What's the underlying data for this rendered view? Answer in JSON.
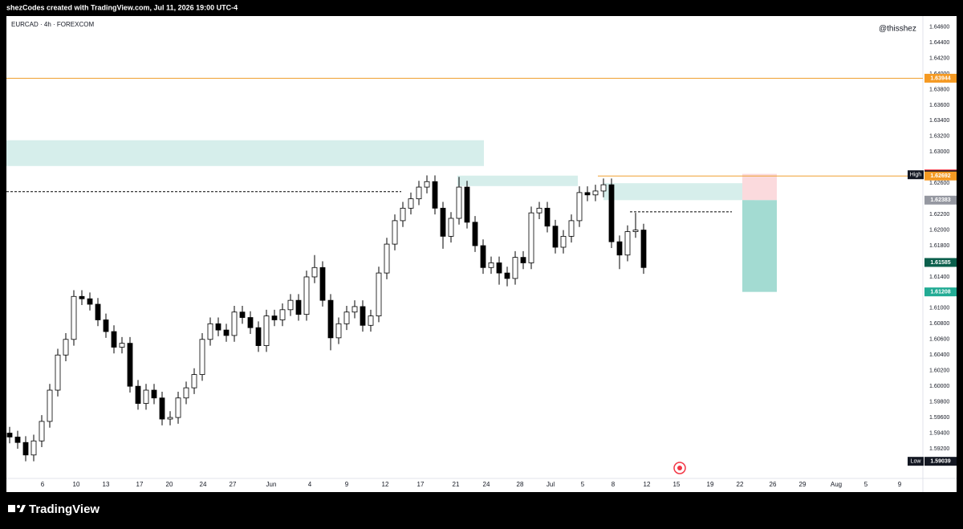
{
  "header": "shezCodes created with TradingView.com, Jul 11, 2026 19:00 UTC-4",
  "symbol": "EURCAD · 4h · FOREXCOM",
  "watermark": "@thisshez",
  "footer": "TradingView",
  "chart_data": {
    "type": "candlestick",
    "up_color": "#ffffff",
    "down_color": "#000000",
    "wick_color": "#000000",
    "x": [
      0,
      1,
      2,
      3,
      4,
      5,
      6,
      7,
      8,
      9,
      10,
      11,
      12,
      13,
      14,
      15,
      16,
      17,
      18,
      19,
      20,
      21,
      22,
      23,
      24,
      25,
      26,
      27,
      28,
      29,
      30,
      31,
      32,
      33,
      34,
      35,
      36,
      37,
      38,
      39,
      40,
      41,
      42,
      43,
      44,
      45,
      46,
      47,
      48,
      49,
      50,
      51,
      52,
      53,
      54,
      55,
      56,
      57,
      58,
      59,
      60,
      61,
      62,
      63,
      64,
      65,
      66,
      67,
      68,
      69,
      70,
      71,
      72,
      73,
      74,
      75,
      76,
      77,
      78,
      79
    ],
    "open": [
      1.594,
      1.5935,
      1.5928,
      1.5912,
      1.593,
      1.5955,
      1.5995,
      1.604,
      1.606,
      1.6115,
      1.6112,
      1.6105,
      1.6085,
      1.607,
      1.605,
      1.6055,
      1.6,
      1.5978,
      1.5995,
      1.5985,
      1.5958,
      1.596,
      1.5985,
      1.5998,
      1.6015,
      1.606,
      1.608,
      1.6072,
      1.6065,
      1.6095,
      1.6088,
      1.6075,
      1.6052,
      1.609,
      1.6085,
      1.6098,
      1.611,
      1.6092,
      1.614,
      1.6152,
      1.611,
      1.6062,
      1.608,
      1.6095,
      1.6102,
      1.6078,
      1.609,
      1.6145,
      1.6182,
      1.6212,
      1.6228,
      1.624,
      1.6255,
      1.6262,
      1.6228,
      1.6192,
      1.6215,
      1.6255,
      1.621,
      1.618,
      1.6152,
      1.6158,
      1.6145,
      1.6138,
      1.6165,
      1.6158,
      1.6222,
      1.6228,
      1.6205,
      1.6178,
      1.6192,
      1.6212,
      1.6248,
      1.6245,
      1.625,
      1.6258,
      1.6185,
      1.6168,
      1.6198,
      1.62
    ],
    "high": [
      1.5948,
      1.5943,
      1.5936,
      1.5938,
      1.5963,
      1.6003,
      1.6048,
      1.6068,
      1.6123,
      1.6123,
      1.612,
      1.6113,
      1.6093,
      1.6078,
      1.6063,
      1.6063,
      1.6008,
      1.6003,
      1.6003,
      1.5993,
      1.5968,
      1.5993,
      1.6006,
      1.6023,
      1.6068,
      1.6088,
      1.6088,
      1.608,
      1.6103,
      1.6103,
      1.6096,
      1.6083,
      1.6098,
      1.6098,
      1.6106,
      1.6118,
      1.6118,
      1.6148,
      1.6168,
      1.616,
      1.6118,
      1.6088,
      1.6103,
      1.611,
      1.611,
      1.6098,
      1.6153,
      1.619,
      1.622,
      1.6236,
      1.6248,
      1.6263,
      1.627,
      1.627,
      1.6236,
      1.6223,
      1.6268,
      1.6263,
      1.6218,
      1.6188,
      1.6166,
      1.6166,
      1.6153,
      1.6173,
      1.6173,
      1.623,
      1.6236,
      1.6236,
      1.6213,
      1.62,
      1.622,
      1.6256,
      1.6256,
      1.6258,
      1.6266,
      1.6266,
      1.6193,
      1.6206,
      1.6222,
      1.6208
    ],
    "low": [
      1.5927,
      1.592,
      1.59039,
      1.5904,
      1.5922,
      1.5947,
      1.5987,
      1.6032,
      1.6052,
      1.6104,
      1.6097,
      1.6077,
      1.6062,
      1.6042,
      1.6042,
      1.5992,
      1.597,
      1.597,
      1.5977,
      1.595,
      1.595,
      1.5952,
      1.5977,
      1.599,
      1.6007,
      1.6052,
      1.6064,
      1.6057,
      1.6057,
      1.608,
      1.6067,
      1.6044,
      1.6044,
      1.6077,
      1.6077,
      1.609,
      1.6084,
      1.6084,
      1.6132,
      1.6102,
      1.6046,
      1.6054,
      1.6072,
      1.6087,
      1.607,
      1.607,
      1.6082,
      1.6137,
      1.6174,
      1.6204,
      1.622,
      1.6232,
      1.6247,
      1.622,
      1.6176,
      1.6184,
      1.6207,
      1.6202,
      1.6172,
      1.6144,
      1.6144,
      1.613,
      1.6128,
      1.613,
      1.615,
      1.615,
      1.6214,
      1.6197,
      1.617,
      1.617,
      1.6184,
      1.6204,
      1.6237,
      1.6237,
      1.6242,
      1.6177,
      1.615,
      1.616,
      1.619,
      1.6144
    ],
    "close": [
      1.5935,
      1.5928,
      1.5912,
      1.593,
      1.5955,
      1.5995,
      1.604,
      1.606,
      1.6115,
      1.6112,
      1.6105,
      1.6085,
      1.607,
      1.605,
      1.6055,
      1.6,
      1.5978,
      1.5995,
      1.5985,
      1.5958,
      1.596,
      1.5985,
      1.5998,
      1.6015,
      1.606,
      1.608,
      1.6072,
      1.6065,
      1.6095,
      1.6088,
      1.6075,
      1.6052,
      1.609,
      1.6085,
      1.6098,
      1.611,
      1.6092,
      1.614,
      1.6152,
      1.611,
      1.6062,
      1.608,
      1.6095,
      1.6102,
      1.6078,
      1.609,
      1.6145,
      1.6182,
      1.6212,
      1.6228,
      1.624,
      1.6255,
      1.6262,
      1.6228,
      1.6192,
      1.6215,
      1.6255,
      1.621,
      1.618,
      1.6152,
      1.6158,
      1.6145,
      1.6138,
      1.6165,
      1.6158,
      1.6222,
      1.6228,
      1.6205,
      1.6178,
      1.6192,
      1.6212,
      1.6248,
      1.6245,
      1.625,
      1.6258,
      1.6185,
      1.6168,
      1.6198,
      1.62,
      1.6152
    ],
    "xlim": [
      -0.4,
      113.8
    ],
    "ylim": [
      1.5883,
      1.6474
    ],
    "xticks": [
      {
        "value": 4.1,
        "label": "6"
      },
      {
        "value": 8.3,
        "label": "10"
      },
      {
        "value": 12,
        "label": "13"
      },
      {
        "value": 16.2,
        "label": "17"
      },
      {
        "value": 19.9,
        "label": "20"
      },
      {
        "value": 24.1,
        "label": "24"
      },
      {
        "value": 27.8,
        "label": "27"
      },
      {
        "value": 32.6,
        "label": "Jun"
      },
      {
        "value": 37.4,
        "label": "4"
      },
      {
        "value": 42,
        "label": "9"
      },
      {
        "value": 46.8,
        "label": "12"
      },
      {
        "value": 51.2,
        "label": "17"
      },
      {
        "value": 55.6,
        "label": "21"
      },
      {
        "value": 59.4,
        "label": "24"
      },
      {
        "value": 63.6,
        "label": "28"
      },
      {
        "value": 67.4,
        "label": "Jul"
      },
      {
        "value": 71.4,
        "label": "5"
      },
      {
        "value": 75.2,
        "label": "8"
      },
      {
        "value": 79.4,
        "label": "12"
      },
      {
        "value": 83.1,
        "label": "15"
      },
      {
        "value": 87.3,
        "label": "19"
      },
      {
        "value": 91,
        "label": "22"
      },
      {
        "value": 95.1,
        "label": "26"
      },
      {
        "value": 98.8,
        "label": "29"
      },
      {
        "value": 103,
        "label": "Aug"
      },
      {
        "value": 106.7,
        "label": "5"
      },
      {
        "value": 110.9,
        "label": "9"
      }
    ],
    "yticks": [
      {
        "value": 1.646,
        "label": "1.64600"
      },
      {
        "value": 1.644,
        "label": "1.64400"
      },
      {
        "value": 1.642,
        "label": "1.64200"
      },
      {
        "value": 1.64,
        "label": "1.64000"
      },
      {
        "value": 1.638,
        "label": "1.63800"
      },
      {
        "value": 1.636,
        "label": "1.63600"
      },
      {
        "value": 1.634,
        "label": "1.63400"
      },
      {
        "value": 1.632,
        "label": "1.63200"
      },
      {
        "value": 1.63,
        "label": "1.63000"
      },
      {
        "value": 1.626,
        "label": "1.62600"
      },
      {
        "value": 1.622,
        "label": "1.62200"
      },
      {
        "value": 1.62,
        "label": "1.62000"
      },
      {
        "value": 1.618,
        "label": "1.61800"
      },
      {
        "value": 1.614,
        "label": "1.61400"
      },
      {
        "value": 1.61,
        "label": "1.61000"
      },
      {
        "value": 1.608,
        "label": "1.60800"
      },
      {
        "value": 1.606,
        "label": "1.60600"
      },
      {
        "value": 1.604,
        "label": "1.60400"
      },
      {
        "value": 1.602,
        "label": "1.60200"
      },
      {
        "value": 1.6,
        "label": "1.60000"
      },
      {
        "value": 1.598,
        "label": "1.59800"
      },
      {
        "value": 1.596,
        "label": "1.59600"
      },
      {
        "value": 1.594,
        "label": "1.59400"
      },
      {
        "value": 1.592,
        "label": "1.59200"
      }
    ],
    "zones": [
      {
        "x": [
          -0.4,
          59.1
        ],
        "y": [
          1.6315,
          1.6282
        ],
        "color": "#d6eeeb"
      },
      {
        "x": [
          55.8,
          70.8
        ],
        "y": [
          1.62697,
          1.62563
        ],
        "color": "#d6eeeb"
      },
      {
        "x": [
          74,
          92.8
        ],
        "y": [
          1.626,
          1.62383
        ],
        "color": "#d6eeeb"
      },
      {
        "x": [
          91.3,
          95.6
        ],
        "y": [
          1.62719,
          1.62383
        ],
        "color": "#fbdadd"
      },
      {
        "x": [
          91.3,
          95.6
        ],
        "y": [
          1.62383,
          1.61208
        ],
        "color": "#a3dbd2"
      }
    ],
    "lines": [
      {
        "x": [
          -0.4,
          113.8
        ],
        "y": 1.63944,
        "color": "#f0a030",
        "dash": false
      },
      {
        "x": [
          73.3,
          113.8
        ],
        "y": 1.62692,
        "color": "#f0a030",
        "dash": false
      },
      {
        "x": [
          -0.4,
          48.8
        ],
        "y": 1.62491,
        "color": "#000000",
        "dash": true
      },
      {
        "x": [
          77.3,
          90
        ],
        "y": 1.62234,
        "color": "#000000",
        "dash": true
      }
    ],
    "price_markers": [
      {
        "value": 1.63944,
        "color": "#f59a23"
      },
      {
        "value": 1.62719,
        "color": "#f23645"
      },
      {
        "value": 1.62708,
        "color": "#131722",
        "tag": "High"
      },
      {
        "value": 1.62692,
        "color": "#f59a23"
      },
      {
        "value": 1.62383,
        "color": "#9598a1"
      },
      {
        "value": 1.61585,
        "color": "#0b5f4c"
      },
      {
        "value": 1.61208,
        "color": "#22ab94"
      },
      {
        "value": 1.59039,
        "color": "#131722",
        "tag": "Low"
      }
    ]
  }
}
